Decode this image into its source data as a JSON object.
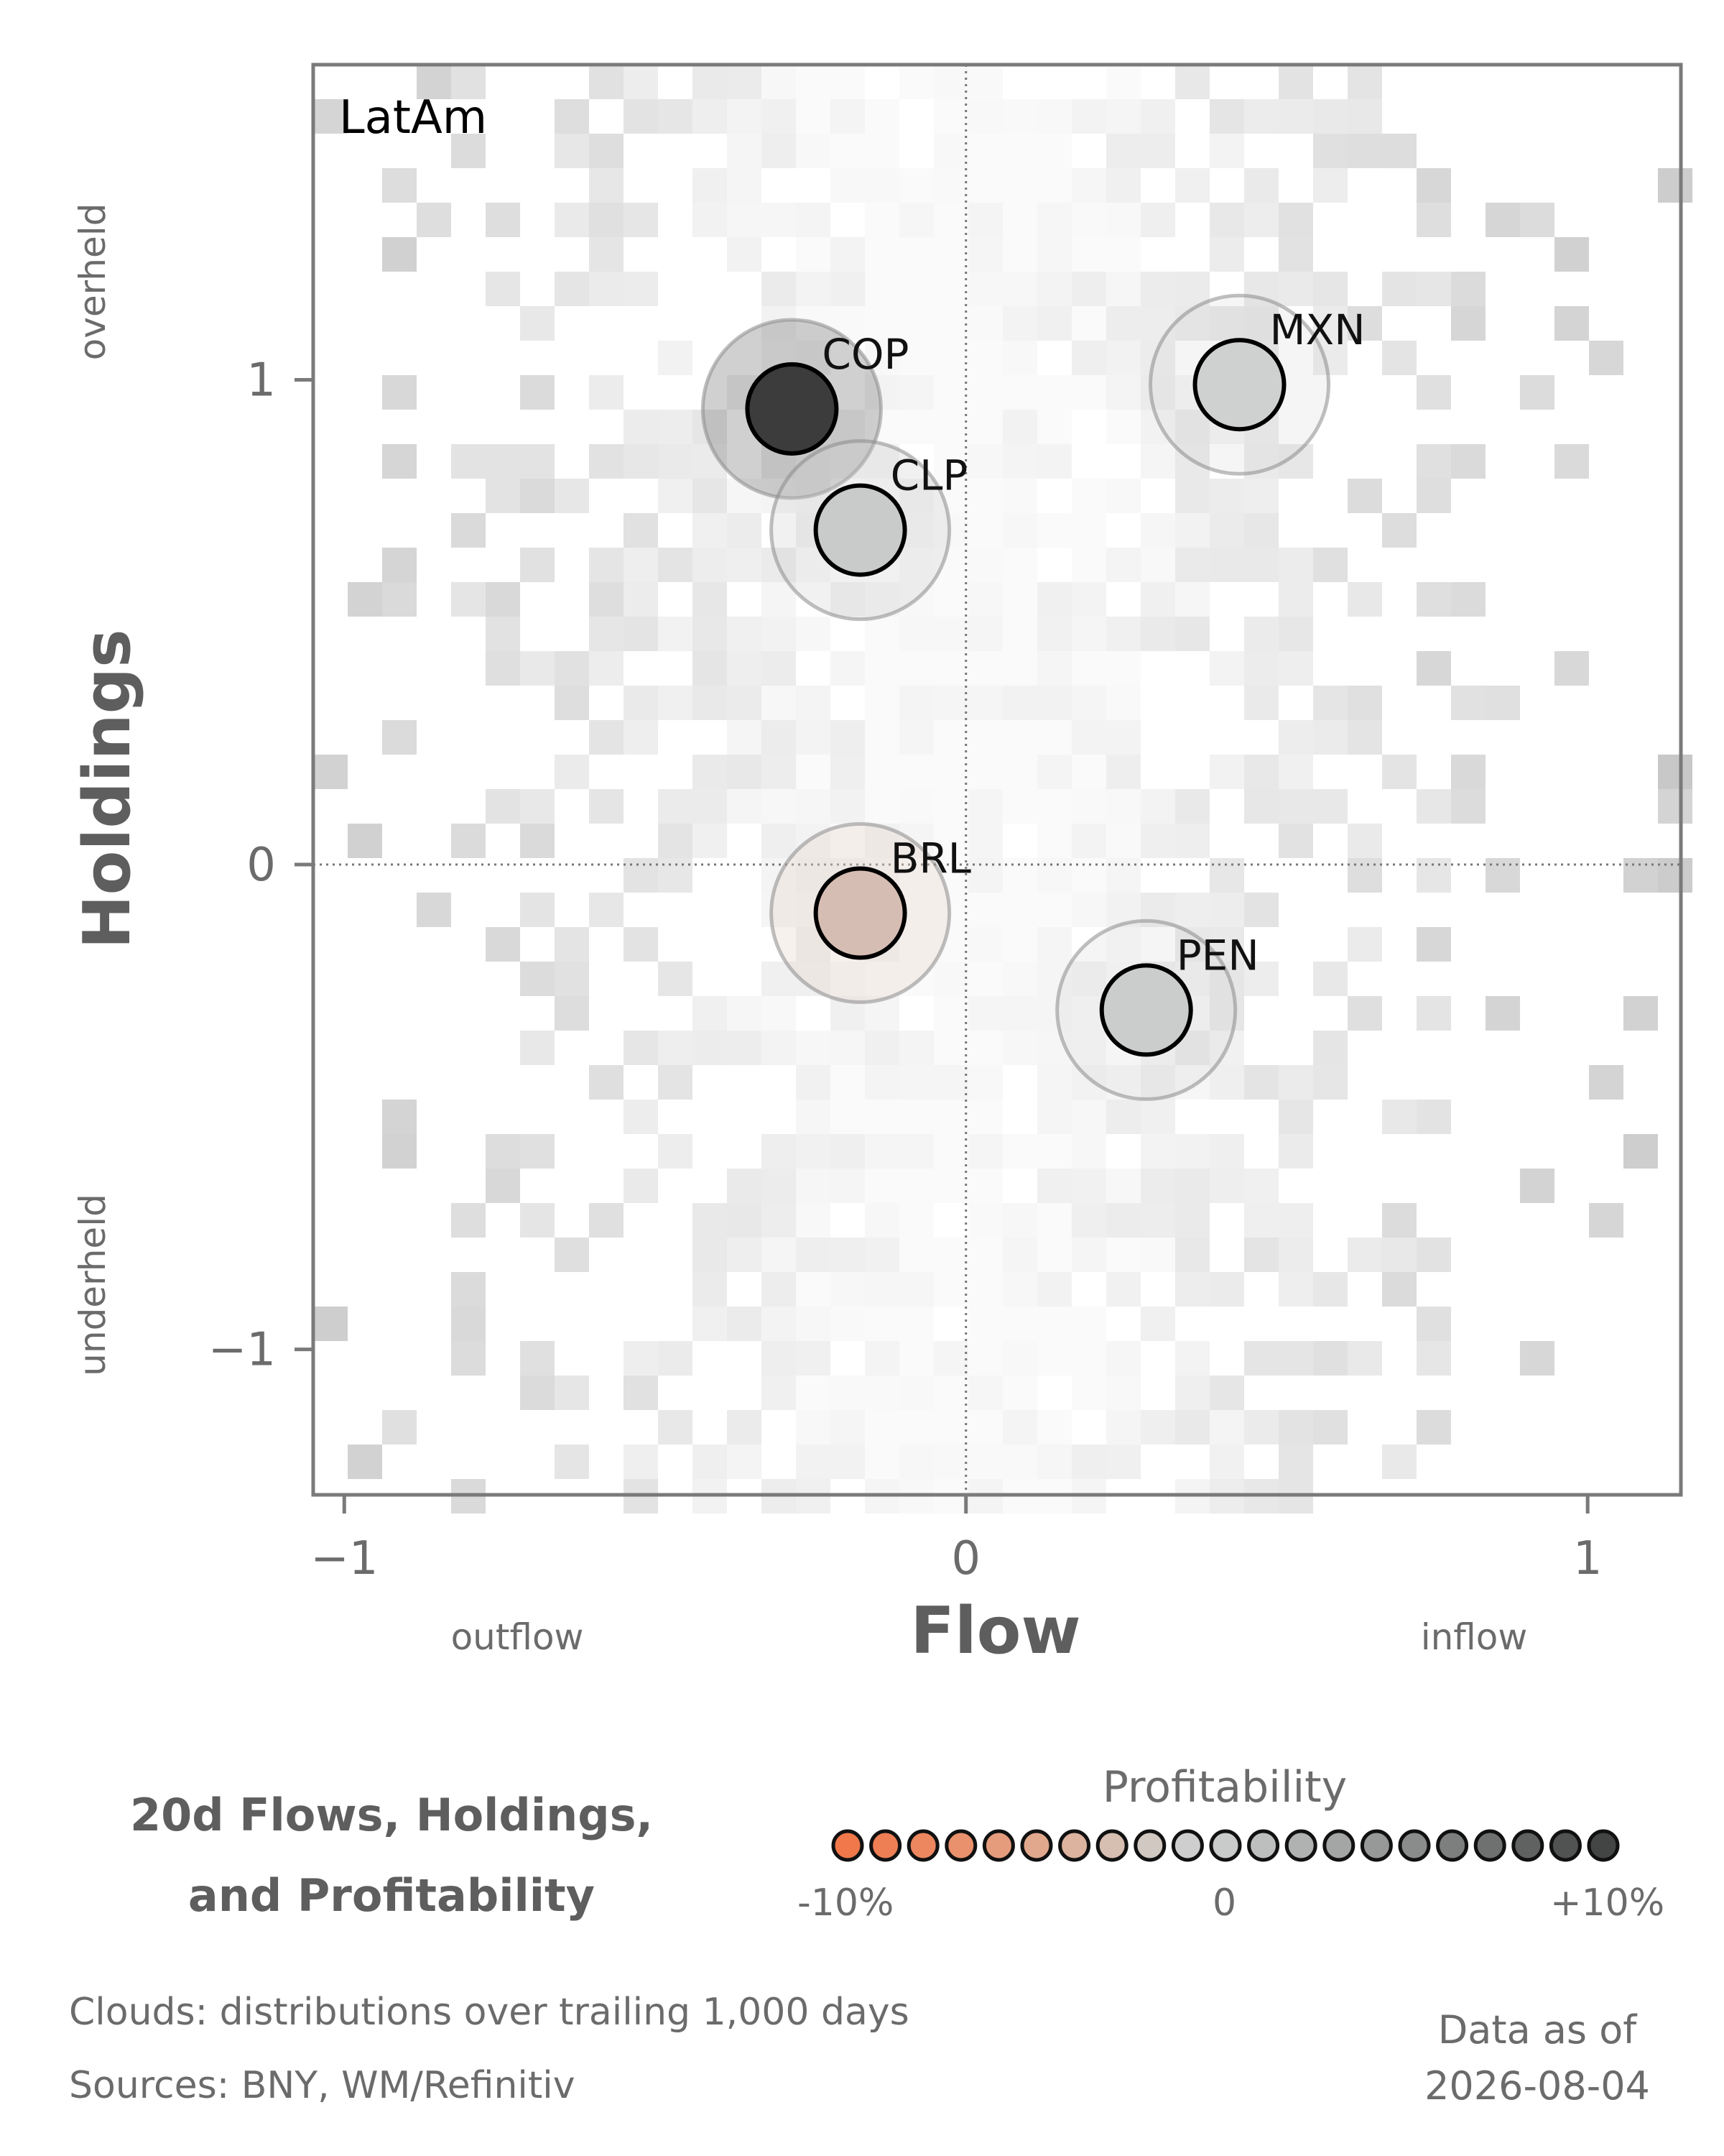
{
  "chart_data": {
    "type": "scatter",
    "panel_label": "LatAm",
    "xlabel": "Flow",
    "ylabel": "Holdings",
    "x_direction_labels": [
      "outflow",
      "inflow"
    ],
    "y_direction_labels": [
      "underheld",
      "overheld"
    ],
    "xlim": [
      -1.05,
      1.15
    ],
    "ylim": [
      -1.3,
      1.65
    ],
    "xticks": [
      {
        "v": -1,
        "label": "−1"
      },
      {
        "v": 0,
        "label": "0"
      },
      {
        "v": 1,
        "label": "1"
      }
    ],
    "yticks": [
      {
        "v": -1,
        "label": "−1"
      },
      {
        "v": 0,
        "label": "0"
      },
      {
        "v": 1,
        "label": "1"
      }
    ],
    "points": [
      {
        "name": "COP",
        "x": -0.28,
        "y": 0.94,
        "color": "#3c3c3c",
        "halo": "#777777",
        "halo_opacity": 0.35
      },
      {
        "name": "CLP",
        "x": -0.17,
        "y": 0.69,
        "color": "#c9cbca",
        "halo": "#cccccc",
        "halo_opacity": 0.28
      },
      {
        "name": "MXN",
        "x": 0.44,
        "y": 0.99,
        "color": "#cfd1d0",
        "halo": "#d2d2d2",
        "halo_opacity": 0.22
      },
      {
        "name": "BRL",
        "x": -0.17,
        "y": -0.1,
        "color": "#d6bdb3",
        "halo": "#e9d6cf",
        "halo_opacity": 0.35
      },
      {
        "name": "PEN",
        "x": 0.29,
        "y": -0.3,
        "color": "#cacdcc",
        "halo": "#d0d0d0",
        "halo_opacity": 0.22
      }
    ]
  },
  "legend": {
    "title_line1": "20d Flows, Holdings,",
    "title_line2": "and Profitability",
    "scale_title": "Profitability",
    "scale_min": "-10%",
    "scale_mid": "0",
    "scale_max": "+10%",
    "swatches": [
      "#f0784a",
      "#ee7f55",
      "#ec8760",
      "#e9916d",
      "#e59c7d",
      "#e1a88d",
      "#dcb39f",
      "#d6beb1",
      "#d1c8c2",
      "#cdcecd",
      "#c9cbca",
      "#bdbfbe",
      "#b0b2b1",
      "#a4a6a5",
      "#979998",
      "#8a8c8b",
      "#7d7f7e",
      "#6f7170",
      "#606261",
      "#515352",
      "#434544"
    ]
  },
  "footer": {
    "clouds": "Clouds:  distributions over trailing 1,000 days",
    "sources": "Sources:  BNY, WM/Refinitiv",
    "asof_line1": "Data as of",
    "asof_line2": "2026-08-04"
  }
}
